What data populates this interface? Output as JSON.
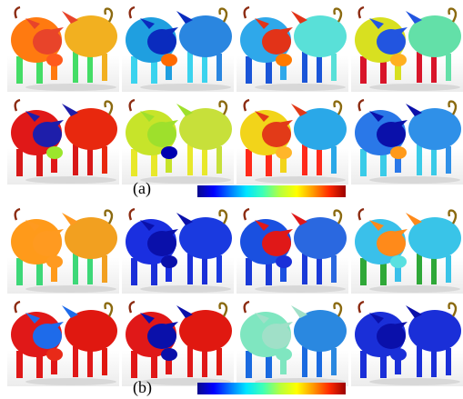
{
  "figure": {
    "panel_a": {
      "caption": "(a)",
      "colormap": [
        "#0a0a8c",
        "#0000ff",
        "#0077ff",
        "#00e5ff",
        "#3dffb8",
        "#b8ff3b",
        "#ffff00",
        "#ff9a00",
        "#ff2a00",
        "#9a0000"
      ],
      "cells": [
        {
          "front": "#ff7a10",
          "back": "#f2b020",
          "head": "#e8442a",
          "snout": "#ff5a1c",
          "legs": "#44dd66"
        },
        {
          "front": "#1f9fe0",
          "back": "#2a86e0",
          "head": "#0a2bbe",
          "snout": "#ff6a00",
          "legs": "#3bd3ee"
        },
        {
          "front": "#2fa8ea",
          "back": "#59e0d8",
          "head": "#e23318",
          "snout": "#ff7a00",
          "legs": "#1a55d8"
        },
        {
          "front": "#d8e020",
          "back": "#63e0a8",
          "head": "#2255e0",
          "snout": "#ffb020",
          "legs": "#d8152a"
        },
        {
          "front": "#e01818",
          "back": "#e8280e",
          "head": "#1e1eaa",
          "snout": "#9be62c",
          "legs": "#d81818"
        },
        {
          "front": "#c7e42a",
          "back": "#c7e03a",
          "head": "#9ee02c",
          "snout": "#0000b0",
          "legs": "#e8e82a"
        },
        {
          "front": "#f2d41a",
          "back": "#2aa8e8",
          "head": "#e23a18",
          "snout": "#ffb62a",
          "legs": "#ff2a1a"
        },
        {
          "front": "#2a78e8",
          "back": "#2f90e8",
          "head": "#0a10aa",
          "snout": "#ff9a1a",
          "legs": "#3acbe8"
        }
      ]
    },
    "panel_b": {
      "caption": "(b)",
      "colormap": [
        "#0a0a8c",
        "#0000ff",
        "#0077ff",
        "#00e5ff",
        "#3dffb8",
        "#b8ff3b",
        "#ffff00",
        "#ff9a00",
        "#ff2a00",
        "#9a0000"
      ],
      "cells": [
        {
          "front": "#ff9a1a",
          "back": "#f2a020",
          "head": "#ff9a20",
          "snout": "#ff9a20",
          "legs": "#3dd878"
        },
        {
          "front": "#1a2fe0",
          "back": "#1a3ae0",
          "head": "#0a10aa",
          "snout": "#0a10aa",
          "legs": "#1a2fd8"
        },
        {
          "front": "#1a50e0",
          "back": "#2a68e0",
          "head": "#e01818",
          "snout": "#1a2fd8",
          "legs": "#1a3ad8"
        },
        {
          "front": "#3ac0ea",
          "back": "#39c4e8",
          "head": "#ff8a1a",
          "snout": "#59e0e0",
          "legs": "#2fa838"
        },
        {
          "front": "#e01818",
          "back": "#e01810",
          "head": "#1e6bea",
          "snout": "#e82a18",
          "legs": "#e01818"
        },
        {
          "front": "#e01818",
          "back": "#e01810",
          "head": "#0a10aa",
          "snout": "#0a10aa",
          "legs": "#e01818"
        },
        {
          "front": "#7fe6c0",
          "back": "#2a88e0",
          "head": "#a0e0c8",
          "snout": "#7fe6c0",
          "legs": "#1a6ae0"
        },
        {
          "front": "#1a2fd8",
          "back": "#1a2fd8",
          "head": "#0a10aa",
          "snout": "#1a2fd8",
          "legs": "#1a2fd8"
        }
      ]
    }
  }
}
